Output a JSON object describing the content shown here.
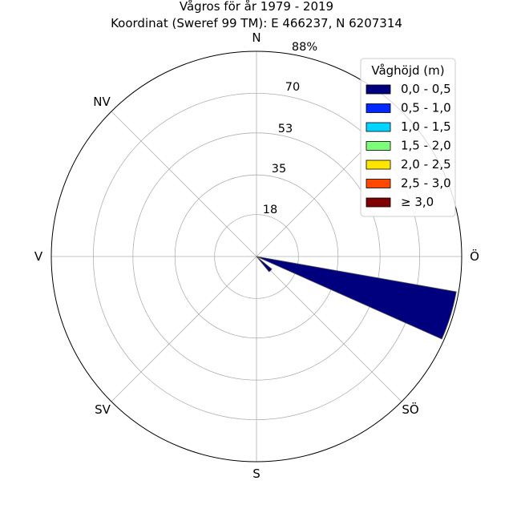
{
  "chart_data": {
    "type": "windrose",
    "title": "Vågros för år 1979 - 2019",
    "subtitle": "Koordinat (Sweref 99 TM): E 466237, N 6207314",
    "directions": [
      "N",
      "NV",
      "V",
      "SV",
      "S",
      "SÖ",
      "Ö"
    ],
    "radial_ticks": [
      "18",
      "35",
      "53",
      "70",
      "88%"
    ],
    "rmax": 88,
    "grid": true,
    "legend": {
      "title": "Våghöjd (m)",
      "placement": "top-right",
      "entries": [
        {
          "label": "0,0 - 0,5",
          "color": "#00007f"
        },
        {
          "label": "0,5 - 1,0",
          "color": "#0028ff"
        },
        {
          "label": "1,0 - 1,5",
          "color": "#00d4ff"
        },
        {
          "label": "1,5 - 2,0",
          "color": "#7dff7a"
        },
        {
          "label": "2,0 - 2,5",
          "color": "#ffe600"
        },
        {
          "label": "2,5 - 3,0",
          "color": "#ff4800"
        },
        {
          "label": "≥ 3,0",
          "color": "#7f0000"
        }
      ]
    },
    "sectors": [
      {
        "direction_deg": 107,
        "width_deg": 14,
        "class": "0,0 - 0,5",
        "value": 87
      },
      {
        "direction_deg": 135,
        "width_deg": 11,
        "class": "0,0 - 0,5",
        "value": 8.5
      }
    ]
  }
}
